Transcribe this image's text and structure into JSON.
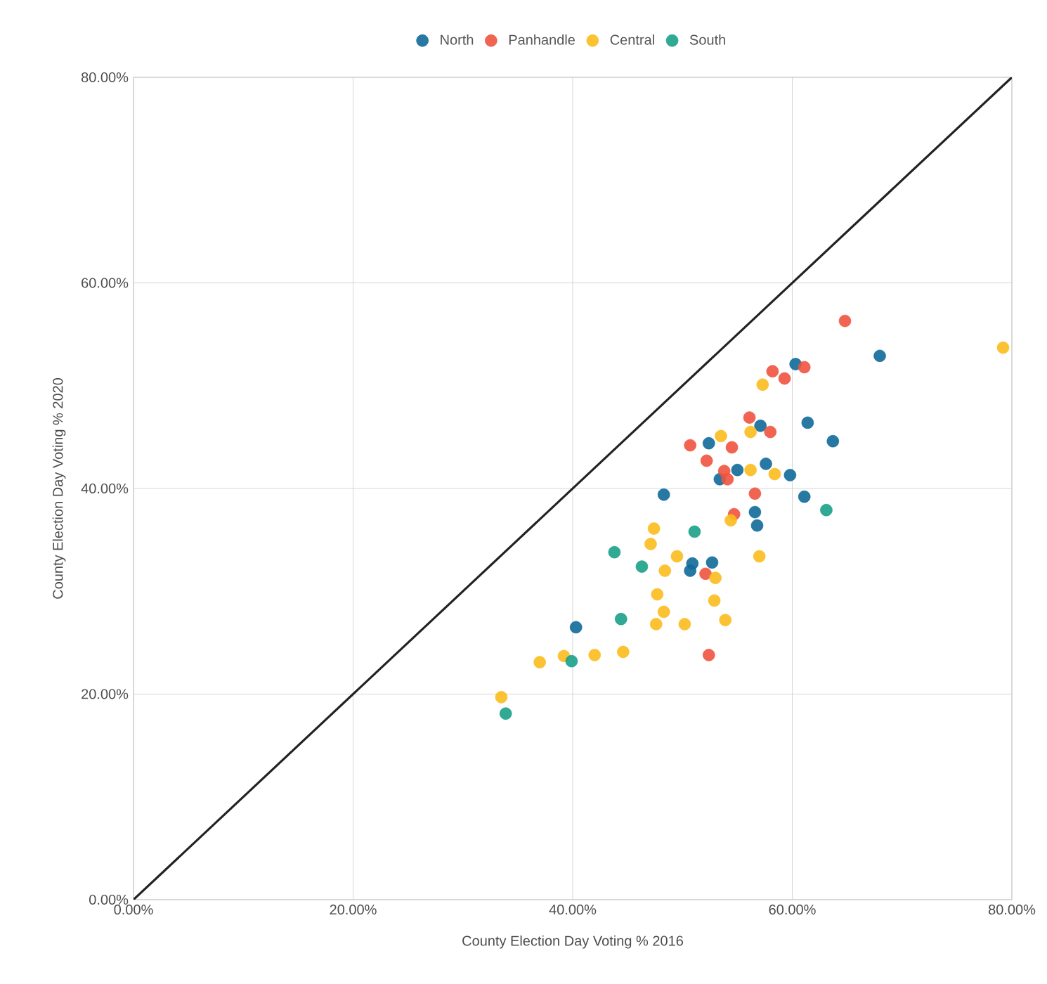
{
  "chart_data": {
    "type": "scatter",
    "xlabel": "County Election Day Voting % 2016",
    "ylabel": "County Election Day Voting % 2020",
    "xlim": [
      0,
      80
    ],
    "ylim": [
      0,
      80
    ],
    "xticks": [
      {
        "value": 0,
        "label": "0.00%"
      },
      {
        "value": 20,
        "label": "20.00%"
      },
      {
        "value": 40,
        "label": "40.00%"
      },
      {
        "value": 60,
        "label": "60.00%"
      },
      {
        "value": 80,
        "label": "80.00%"
      }
    ],
    "yticks": [
      {
        "value": 0,
        "label": "0.00%"
      },
      {
        "value": 20,
        "label": "20.00%"
      },
      {
        "value": 40,
        "label": "40.00%"
      },
      {
        "value": 60,
        "label": "60.00%"
      },
      {
        "value": 80,
        "label": "80.00%"
      }
    ],
    "grid": true,
    "legend": "top",
    "series": [
      {
        "name": "North",
        "marker": "circle",
        "color": "#0f6a99",
        "x": [
          67.97,
          60.3,
          61.4,
          63.7,
          57.1,
          57.6,
          59.8,
          61.1,
          56.6,
          56.8,
          52.4,
          55.0,
          53.4,
          48.3,
          50.9,
          50.7,
          52.7,
          40.3
        ],
        "values": [
          52.9,
          52.1,
          46.4,
          44.6,
          46.1,
          42.4,
          41.3,
          39.2,
          37.7,
          36.4,
          44.4,
          41.8,
          40.9,
          39.4,
          32.7,
          32.0,
          32.8,
          26.5
        ]
      },
      {
        "name": "Panhandle",
        "marker": "circle",
        "color": "#f0533f",
        "x": [
          64.8,
          61.1,
          59.3,
          58.2,
          56.1,
          58.0,
          56.6,
          50.7,
          54.5,
          52.2,
          53.8,
          54.1,
          54.7,
          52.4,
          52.1
        ],
        "values": [
          56.3,
          51.8,
          50.7,
          51.4,
          46.9,
          45.5,
          39.5,
          44.2,
          44.0,
          42.7,
          41.7,
          40.9,
          37.5,
          23.8,
          31.7
        ]
      },
      {
        "name": "Central",
        "marker": "circle",
        "color": "#fbbd1e",
        "x": [
          79.2,
          57.3,
          53.5,
          56.2,
          56.2,
          47.4,
          54.4,
          58.4,
          57.0,
          47.1,
          49.5,
          48.4,
          53.0,
          47.7,
          48.3,
          47.6,
          50.2,
          52.9,
          53.9,
          44.6,
          42.0,
          39.2,
          37.0,
          33.5
        ],
        "values": [
          53.7,
          50.1,
          45.1,
          45.5,
          41.8,
          36.1,
          36.9,
          41.4,
          33.4,
          34.6,
          33.4,
          32.0,
          31.3,
          29.7,
          28.0,
          26.8,
          26.8,
          29.1,
          27.2,
          24.1,
          23.8,
          23.7,
          23.1,
          19.7
        ]
      },
      {
        "name": "South",
        "marker": "circle",
        "color": "#19a08a",
        "x": [
          63.1,
          51.1,
          43.8,
          46.3,
          44.4,
          39.9,
          33.9
        ],
        "values": [
          37.9,
          35.8,
          33.8,
          32.4,
          27.3,
          23.2,
          18.1
        ]
      },
      {
        "type": "line",
        "color": "#222222",
        "x": [
          0,
          80
        ],
        "values": [
          0,
          80
        ]
      }
    ]
  }
}
